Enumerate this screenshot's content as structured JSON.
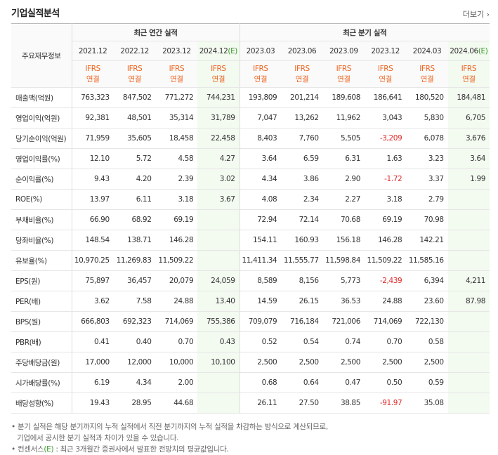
{
  "header": {
    "title": "기업실적분석",
    "more": "더보기"
  },
  "table": {
    "corner": "주요재무정보",
    "groups": [
      "최근 연간 실적",
      "최근 분기 실적"
    ],
    "periods": [
      "2021.12",
      "2022.12",
      "2023.12",
      [
        "2024.12",
        "(E)"
      ],
      "2023.03",
      "2023.06",
      "2023.09",
      "2023.12",
      "2024.03",
      [
        "2024.06",
        "(E)"
      ]
    ],
    "standards": [
      [
        "IFRS",
        "연결"
      ],
      [
        "IFRS",
        "연결"
      ],
      [
        "IFRS",
        "연결"
      ],
      [
        "IFRS",
        "연결"
      ],
      [
        "IFRS",
        "연결"
      ],
      [
        "IFRS",
        "연결"
      ],
      [
        "IFRS",
        "연결"
      ],
      [
        "IFRS",
        "연결"
      ],
      [
        "IFRS",
        "연결"
      ],
      [
        "IFRS",
        "연결"
      ]
    ],
    "rows": [
      {
        "label": "매출액(억원)",
        "values": [
          "763,323",
          "847,502",
          "771,272",
          "744,231",
          "193,809",
          "201,214",
          "189,608",
          "186,641",
          "180,520",
          "184,481"
        ]
      },
      {
        "label": "영업이익(억원)",
        "values": [
          "92,381",
          "48,501",
          "35,314",
          "31,789",
          "7,047",
          "13,262",
          "11,962",
          "3,043",
          "5,830",
          "6,705"
        ]
      },
      {
        "label": "당기순이익(억원)",
        "values": [
          "71,959",
          "35,605",
          "18,458",
          "22,458",
          "8,403",
          "7,760",
          "5,505",
          "-3,209",
          "6,078",
          "3,676"
        ]
      },
      {
        "label": "영업이익률(%)",
        "values": [
          "12.10",
          "5.72",
          "4.58",
          "4.27",
          "3.64",
          "6.59",
          "6.31",
          "1.63",
          "3.23",
          "3.64"
        ]
      },
      {
        "label": "순이익률(%)",
        "values": [
          "9.43",
          "4.20",
          "2.39",
          "3.02",
          "4.34",
          "3.86",
          "2.90",
          "-1.72",
          "3.37",
          "1.99"
        ]
      },
      {
        "label": "ROE(%)",
        "values": [
          "13.97",
          "6.11",
          "3.18",
          "3.67",
          "4.08",
          "2.34",
          "2.27",
          "3.18",
          "2.79",
          null
        ]
      },
      {
        "label": "부채비율(%)",
        "values": [
          "66.90",
          "68.92",
          "69.19",
          null,
          "72.94",
          "72.14",
          "70.68",
          "69.19",
          "70.98",
          null
        ]
      },
      {
        "label": "당좌비율(%)",
        "values": [
          "148.54",
          "138.71",
          "146.28",
          null,
          "154.11",
          "160.93",
          "156.18",
          "146.28",
          "142.21",
          null
        ]
      },
      {
        "label": "유보율(%)",
        "values": [
          "10,970.25",
          "11,269.83",
          "11,509.22",
          null,
          "11,411.34",
          "11,555.77",
          "11,598.84",
          "11,509.22",
          "11,585.16",
          null
        ]
      },
      {
        "label": "EPS(원)",
        "values": [
          "75,897",
          "36,457",
          "20,079",
          "24,059",
          "8,589",
          "8,156",
          "5,773",
          "-2,439",
          "6,394",
          "4,211"
        ]
      },
      {
        "label": "PER(배)",
        "values": [
          "3.62",
          "7.58",
          "24.88",
          "13.40",
          "14.59",
          "26.15",
          "36.53",
          "24.88",
          "23.60",
          "87.98"
        ]
      },
      {
        "label": "BPS(원)",
        "values": [
          "666,803",
          "692,323",
          "714,069",
          "755,386",
          "709,079",
          "716,184",
          "721,006",
          "714,069",
          "722,130",
          null
        ]
      },
      {
        "label": "PBR(배)",
        "values": [
          "0.41",
          "0.40",
          "0.70",
          "0.43",
          "0.52",
          "0.54",
          "0.74",
          "0.70",
          "0.58",
          null
        ]
      },
      {
        "label": "주당배당금(원)",
        "values": [
          "17,000",
          "12,000",
          "10,000",
          "10,100",
          "2,500",
          "2,500",
          "2,500",
          "2,500",
          "2,500",
          null
        ]
      },
      {
        "label": "시가배당률(%)",
        "values": [
          "6.19",
          "4.34",
          "2.00",
          null,
          "0.68",
          "0.64",
          "0.47",
          "0.50",
          "0.59",
          null
        ]
      },
      {
        "label": "배당성향(%)",
        "values": [
          "19.43",
          "28.95",
          "44.68",
          null,
          "26.11",
          "27.50",
          "38.85",
          "-91.97",
          "35.08",
          null
        ]
      }
    ]
  },
  "notes": [
    "분기 실적은 해당 분기까지의 누적 실적에서 직전 분기까지의 누적 실적을 차감하는 방식으로 계산되므로,",
    "기업에서 공시한 분기 실적과 차이가 있을 수 있습니다.",
    [
      "컨센서스",
      "(E)",
      " : 최근 3개월간 증권사에서 발표한 전망치의 평균값입니다."
    ]
  ]
}
